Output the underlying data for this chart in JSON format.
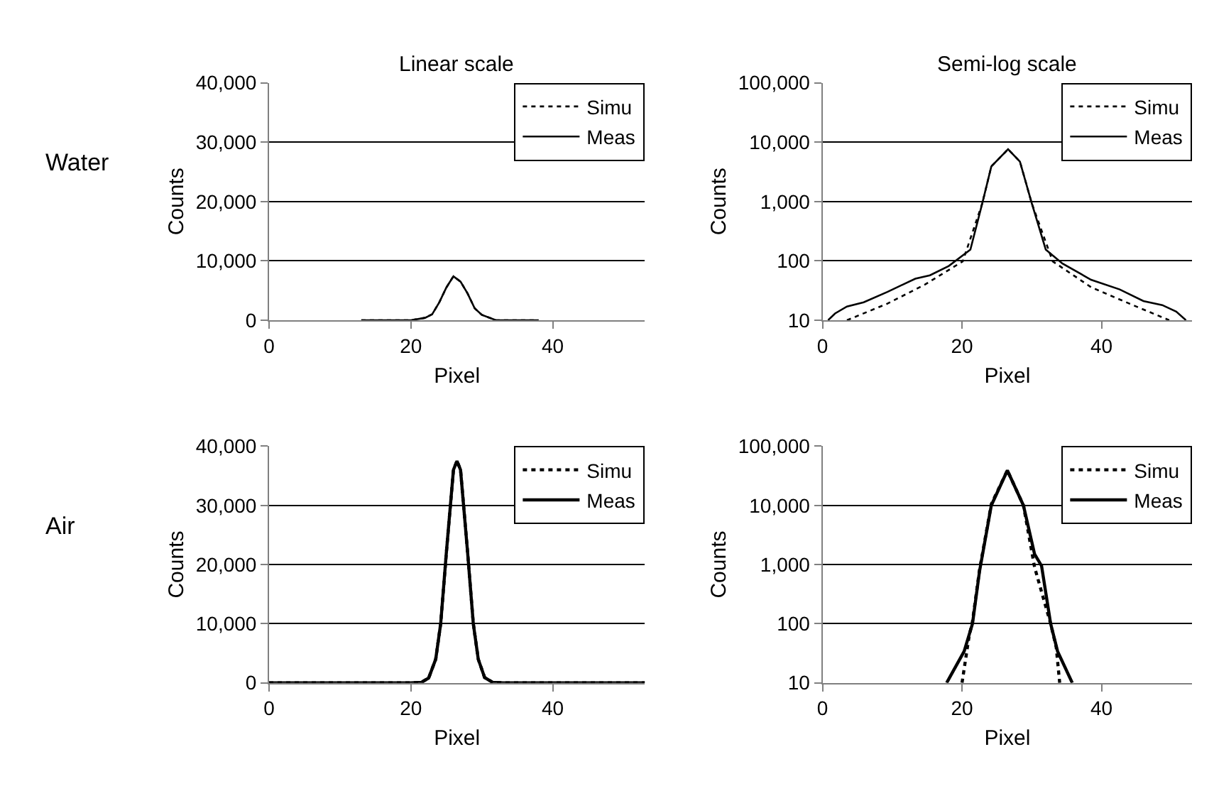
{
  "chart_data": [
    {
      "type": "line",
      "title": "Linear scale",
      "xlabel": "Pixel",
      "ylabel": "Counts",
      "annotations": [
        "Water"
      ],
      "xlim": [
        0,
        53
      ],
      "xticks": [
        0,
        20,
        40
      ],
      "ylim": [
        0,
        40000
      ],
      "yticks": [
        0,
        {
          "value": 10000,
          "label": "10,000"
        },
        {
          "value": 20000,
          "label": "20,000"
        },
        {
          "value": 30000,
          "label": "30,000"
        },
        {
          "value": 40000,
          "label": "40,000"
        }
      ],
      "grid": "y",
      "legend": "top right",
      "marker": "none",
      "series": [
        {
          "name": "Simu",
          "color": "#000000",
          "line_style": "dotted",
          "x": [
            13,
            20,
            22,
            23,
            24,
            25,
            26,
            27,
            28,
            29,
            30,
            32,
            38
          ],
          "values": [
            0,
            0,
            400,
            1000,
            3000,
            5500,
            7400,
            6500,
            4500,
            2000,
            900,
            0,
            0
          ]
        },
        {
          "name": "Meas",
          "color": "#000000",
          "line_style": "solid",
          "x": [
            13,
            20,
            22,
            23,
            24,
            25,
            26,
            27,
            28,
            29,
            30,
            32,
            38
          ],
          "values": [
            0,
            0,
            400,
            1000,
            3000,
            5500,
            7400,
            6500,
            4500,
            2000,
            900,
            0,
            0
          ]
        }
      ]
    },
    {
      "type": "line",
      "title": "Semi-log scale",
      "xlabel": "Pixel",
      "ylabel": "Counts",
      "log": "y",
      "xlim": [
        0,
        53
      ],
      "xticks": [
        0,
        20,
        40
      ],
      "ylim": [
        10,
        100000
      ],
      "yticks": [
        10,
        100,
        {
          "value": 1000,
          "label": "1,000"
        },
        {
          "value": 10000,
          "label": "10,000"
        },
        {
          "value": 100000,
          "label": "100,000"
        }
      ],
      "grid": "y",
      "legend": "top right",
      "marker": "none",
      "series": [
        {
          "name": "Simu",
          "color": "#000000",
          "line_style": "dotted",
          "x": [
            3.5,
            9.3,
            14.7,
            20.1,
            22.9,
            24.2,
            26.6,
            28.3,
            30,
            33,
            38.5,
            44,
            49.7
          ],
          "values": [
            10,
            19,
            40,
            98,
            930,
            3900,
            7600,
            4700,
            930,
            98,
            36,
            19,
            10
          ]
        },
        {
          "name": "Meas",
          "color": "#000000",
          "line_style": "solid",
          "x": [
            0.8,
            1.8,
            3.5,
            5.9,
            9.3,
            13.3,
            15.4,
            18.1,
            21.2,
            22.9,
            24.2,
            26.6,
            28.3,
            30,
            32,
            34.4,
            38.5,
            42.6,
            46,
            48.7,
            50.7,
            52.1
          ],
          "values": [
            10,
            13,
            17,
            20,
            30,
            50,
            57,
            82,
            155,
            930,
            3900,
            7600,
            4700,
            930,
            155,
            90,
            48,
            33,
            21,
            18,
            14,
            10
          ]
        }
      ]
    },
    {
      "type": "line",
      "xlabel": "Pixel",
      "ylabel": "Counts",
      "annotations": [
        "Air"
      ],
      "xlim": [
        0,
        53
      ],
      "xticks": [
        0,
        20,
        40
      ],
      "ylim": [
        0,
        40000
      ],
      "yticks": [
        0,
        {
          "value": 10000,
          "label": "10,000"
        },
        {
          "value": 20000,
          "label": "20,000"
        },
        {
          "value": 30000,
          "label": "30,000"
        },
        {
          "value": 40000,
          "label": "40,000"
        }
      ],
      "grid": "y",
      "legend": "top right",
      "marker": "none",
      "series": [
        {
          "name": "Simu",
          "color": "#000000",
          "line_style": "dotted",
          "x": [
            0,
            20,
            21.5,
            22.5,
            23.5,
            24.2,
            25,
            26,
            26.5,
            27,
            28,
            28.8,
            29.5,
            30.4,
            31.5,
            33,
            53
          ],
          "values": [
            0,
            0,
            100,
            800,
            4000,
            10000,
            22000,
            36000,
            37500,
            36000,
            22000,
            10000,
            4000,
            900,
            100,
            0,
            0
          ]
        },
        {
          "name": "Meas",
          "color": "#000000",
          "line_style": "solid",
          "x": [
            0,
            20,
            21.5,
            22.5,
            23.5,
            24.2,
            25,
            26,
            26.5,
            27,
            28,
            28.8,
            29.5,
            30.4,
            31.5,
            33,
            53
          ],
          "values": [
            0,
            0,
            100,
            800,
            4000,
            10000,
            22000,
            36000,
            37500,
            36000,
            22000,
            10000,
            4000,
            900,
            100,
            0,
            0
          ]
        }
      ]
    },
    {
      "type": "line",
      "xlabel": "Pixel",
      "ylabel": "Counts",
      "log": "y",
      "xlim": [
        0,
        53
      ],
      "xticks": [
        0,
        20,
        40
      ],
      "ylim": [
        10,
        100000
      ],
      "yticks": [
        10,
        100,
        {
          "value": 1000,
          "label": "1,000"
        },
        {
          "value": 10000,
          "label": "10,000"
        },
        {
          "value": 100000,
          "label": "100,000"
        }
      ],
      "grid": "y",
      "legend": "top right",
      "marker": "none",
      "series": [
        {
          "name": "Simu",
          "color": "#000000",
          "line_style": "dotted",
          "x": [
            20,
            21,
            21.5,
            22.5,
            24.2,
            26.5,
            28.8,
            30.4,
            32.7,
            33.5,
            34
          ],
          "values": [
            10,
            60,
            110,
            800,
            10500,
            39000,
            10000,
            900,
            100,
            40,
            10
          ]
        },
        {
          "name": "Meas",
          "color": "#000000",
          "line_style": "solid",
          "x": [
            17.8,
            20.3,
            21.5,
            22.5,
            24.2,
            26.5,
            28.8,
            30.4,
            31.4,
            32.7,
            33.7,
            35.8
          ],
          "values": [
            10,
            34,
            100,
            760,
            10000,
            39000,
            10000,
            1500,
            950,
            100,
            34,
            10
          ]
        }
      ]
    }
  ]
}
